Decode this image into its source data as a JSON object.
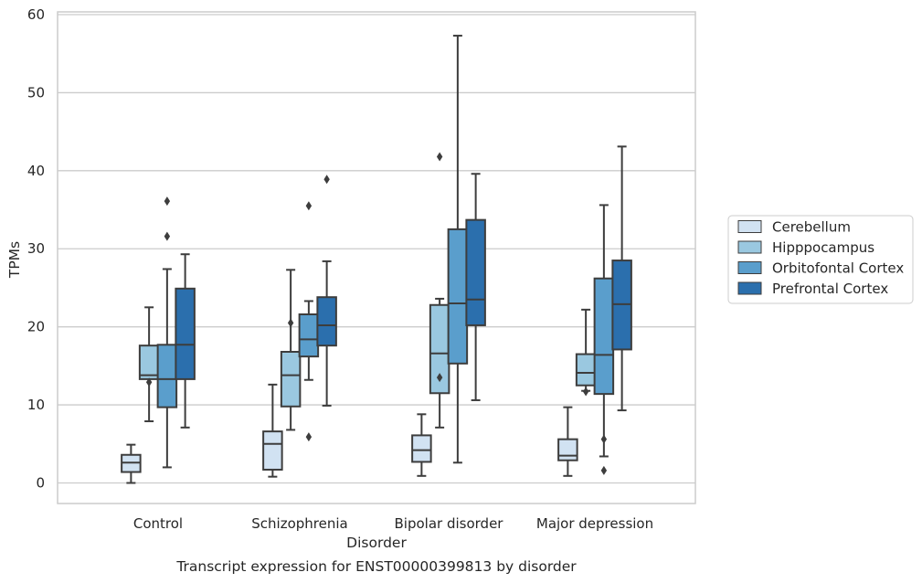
{
  "chart_data": {
    "type": "box",
    "caption": "Transcript expression for ENST00000399813 by disorder",
    "xlabel": "Disorder",
    "ylabel": "TPMs",
    "ylim": [
      -2.7,
      60.3
    ],
    "yticks": [
      0,
      10,
      20,
      30,
      40,
      50,
      60
    ],
    "grid": "horizontal",
    "legend_position": "right",
    "categories": [
      "Control",
      "Schizophrenia",
      "Bipolar disorder",
      "Major depression"
    ],
    "series": [
      {
        "name": "Cerebellum",
        "color": "#d1e2f2",
        "boxes": [
          {
            "whislo": 0.0,
            "q1": 1.4,
            "med": 2.6,
            "q3": 3.6,
            "whishi": 4.9,
            "fliers": []
          },
          {
            "whislo": 0.8,
            "q1": 1.7,
            "med": 5.0,
            "q3": 6.6,
            "whishi": 12.6,
            "fliers": []
          },
          {
            "whislo": 0.9,
            "q1": 2.7,
            "med": 4.2,
            "q3": 6.1,
            "whishi": 8.8,
            "fliers": []
          },
          {
            "whislo": 0.9,
            "q1": 2.9,
            "med": 3.5,
            "q3": 5.6,
            "whishi": 9.7,
            "fliers": []
          }
        ]
      },
      {
        "name": "Hipppocampus",
        "color": "#9ac8e0",
        "boxes": [
          {
            "whislo": 7.9,
            "q1": 13.3,
            "med": 13.8,
            "q3": 17.6,
            "whishi": 22.5,
            "fliers": [
              12.9
            ]
          },
          {
            "whislo": 6.8,
            "q1": 9.8,
            "med": 13.8,
            "q3": 16.8,
            "whishi": 27.3,
            "fliers": [
              20.5
            ]
          },
          {
            "whislo": 7.1,
            "q1": 11.5,
            "med": 16.6,
            "q3": 22.8,
            "whishi": 23.6,
            "fliers": [
              13.5,
              41.8
            ]
          },
          {
            "whislo": 11.8,
            "q1": 12.5,
            "med": 14.1,
            "q3": 16.5,
            "whishi": 22.2,
            "fliers": [
              11.7
            ]
          }
        ]
      },
      {
        "name": "Orbitofontal Cortex",
        "color": "#5a9ecc",
        "boxes": [
          {
            "whislo": 2.0,
            "q1": 9.7,
            "med": 13.3,
            "q3": 17.7,
            "whishi": 27.4,
            "fliers": [
              31.6,
              36.1
            ]
          },
          {
            "whislo": 13.2,
            "q1": 16.2,
            "med": 18.4,
            "q3": 21.6,
            "whishi": 23.3,
            "fliers": [
              5.9,
              35.5
            ]
          },
          {
            "whislo": 2.6,
            "q1": 15.3,
            "med": 23.0,
            "q3": 32.5,
            "whishi": 57.3,
            "fliers": []
          },
          {
            "whislo": 3.4,
            "q1": 11.4,
            "med": 16.4,
            "q3": 26.2,
            "whishi": 35.6,
            "fliers": [
              1.6,
              5.6
            ]
          }
        ]
      },
      {
        "name": "Prefrontal Cortex",
        "color": "#2b6fad",
        "boxes": [
          {
            "whislo": 7.1,
            "q1": 13.3,
            "med": 17.7,
            "q3": 24.9,
            "whishi": 29.3,
            "fliers": []
          },
          {
            "whislo": 9.9,
            "q1": 17.6,
            "med": 20.2,
            "q3": 23.8,
            "whishi": 28.4,
            "fliers": [
              38.9
            ]
          },
          {
            "whislo": 10.6,
            "q1": 20.2,
            "med": 23.5,
            "q3": 33.7,
            "whishi": 39.6,
            "fliers": []
          },
          {
            "whislo": 9.3,
            "q1": 17.1,
            "med": 22.9,
            "q3": 28.5,
            "whishi": 43.1,
            "fliers": []
          }
        ]
      }
    ]
  }
}
